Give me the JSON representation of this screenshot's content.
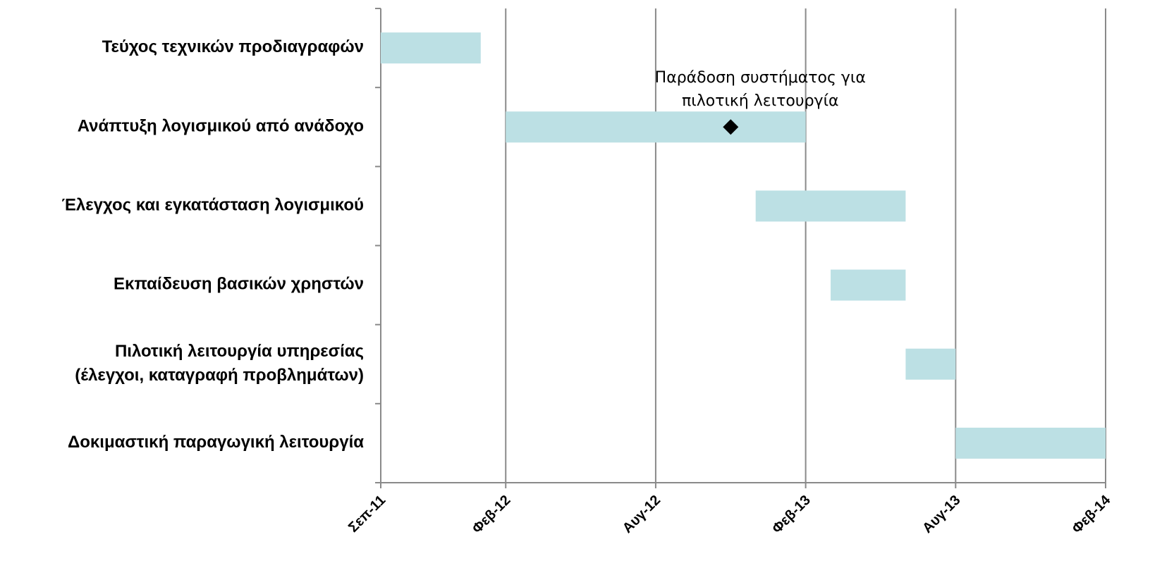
{
  "chart_data": {
    "type": "gantt",
    "color": "#bce0e4",
    "grid": true,
    "xlim": [
      "2011-09",
      "2014-02"
    ],
    "xticks": [
      {
        "value": "2011-09",
        "label": "Σεπ-11"
      },
      {
        "value": "2012-02",
        "label": "Φεβ-12"
      },
      {
        "value": "2012-08",
        "label": "Αυγ-12"
      },
      {
        "value": "2013-02",
        "label": "Φεβ-13"
      },
      {
        "value": "2013-08",
        "label": "Αυγ-13"
      },
      {
        "value": "2014-02",
        "label": "Φεβ-14"
      }
    ],
    "tasks": [
      {
        "label": [
          "Τεύχος τεχνικών προδιαγραφών"
        ],
        "start": "2011-09",
        "end": "2012-01"
      },
      {
        "label": [
          "Ανάπτυξη λογισμικού από ανάδοχο"
        ],
        "start": "2012-02",
        "end": "2013-02"
      },
      {
        "label": [
          "Έλεγχος και εγκατάσταση λογισμικού"
        ],
        "start": "2012-12",
        "end": "2013-06"
      },
      {
        "label": [
          "Εκπαίδευση βασικών χρηστών"
        ],
        "start": "2013-03",
        "end": "2013-06"
      },
      {
        "label": [
          "Πιλοτική λειτουργία υπηρεσίας",
          "(έλεγχοι, καταγραφή προβλημάτων)"
        ],
        "start": "2013-06",
        "end": "2013-08"
      },
      {
        "label": [
          "Δοκιμαστική παραγωγική λειτουργία"
        ],
        "start": "2013-08",
        "end": "2014-02"
      }
    ],
    "milestones": [
      {
        "label": [
          "Παράδοση συστήματος για",
          "πιλοτική λειτουργία"
        ],
        "date": "2012-11",
        "task": 1
      }
    ]
  }
}
